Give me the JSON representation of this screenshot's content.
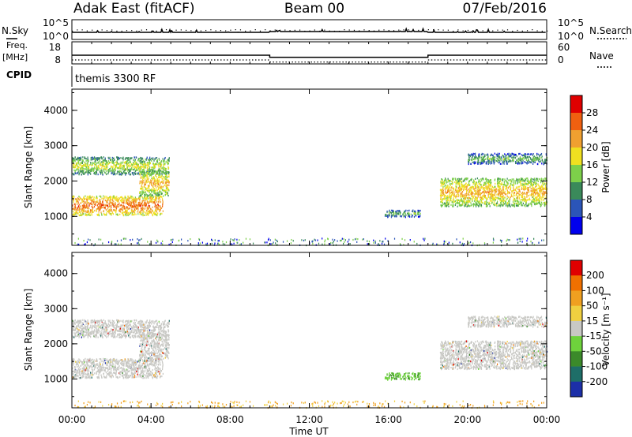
{
  "header": {
    "station": "Adak East (fitACF)",
    "beam": "Beam 00",
    "date": "07/Feb/2016"
  },
  "top_panel": {
    "left_label": "N.Sky",
    "right_label": "N.Search",
    "left_ticks": [
      "10^5",
      "10^0"
    ],
    "right_ticks": [
      "10^5",
      "10^0"
    ]
  },
  "freq_panel": {
    "left_label_1": "Freq.",
    "left_label_2": "[MHz]",
    "right_label": "Nave",
    "left_ticks": [
      "18",
      "8"
    ],
    "right_ticks": [
      "60",
      "0"
    ]
  },
  "cpid_panel": {
    "label": "CPID",
    "text": "themis 3300 RF"
  },
  "x_axis": {
    "label": "Time UT",
    "ticks": [
      "00:00",
      "04:00",
      "08:00",
      "12:00",
      "16:00",
      "20:00",
      "00:00"
    ]
  },
  "power_panel": {
    "ylabel": "Slant Range [km]",
    "yticks": [
      "4000",
      "3000",
      "2000",
      "1000"
    ],
    "colorbar_label": "Power [dB]",
    "colorbar_ticks": [
      "28",
      "24",
      "20",
      "16",
      "12",
      "8",
      "4"
    ],
    "colors": [
      "#0000ee",
      "#2b55b8",
      "#3a8a5a",
      "#7dd04a",
      "#f0e020",
      "#f0a030",
      "#f06010",
      "#e00000"
    ]
  },
  "velocity_panel": {
    "ylabel": "Slant Range [km]",
    "yticks": [
      "4000",
      "3000",
      "2000",
      "1000"
    ],
    "colorbar_label": "Velocity [m s⁻¹]",
    "colorbar_ticks": [
      "200",
      "100",
      "50",
      "15",
      "-15",
      "-50",
      "-100",
      "-200"
    ],
    "colors": [
      "#1c2fa8",
      "#1e6e68",
      "#3b8a2a",
      "#6ed23c",
      "#c8c8c4",
      "#f0d040",
      "#f0a020",
      "#f07000",
      "#e00000"
    ]
  },
  "chart_data": {
    "type": "heatmap",
    "title": "Adak East (fitACF)  Beam 00  07/Feb/2016",
    "xlabel": "Time UT",
    "ylabel": "Slant Range [km]",
    "xlim": [
      0,
      24
    ],
    "ylim": [
      180,
      4600
    ],
    "frequency_mhz": [
      {
        "start": 0,
        "end": 10,
        "value": 11.5
      },
      {
        "start": 10,
        "end": 18,
        "value": 10.2
      },
      {
        "start": 18,
        "end": 24,
        "value": 11.5
      }
    ],
    "echo_regions": [
      {
        "t0": 0.0,
        "t1": 4.6,
        "r0": 1050,
        "r1": 1600,
        "power_db": 20,
        "velocity": "gray"
      },
      {
        "t0": 0.0,
        "t1": 4.9,
        "r0": 2200,
        "r1": 2700,
        "power_db": 12,
        "velocity": "gray"
      },
      {
        "t0": 3.4,
        "t1": 4.9,
        "r0": 1600,
        "r1": 2300,
        "power_db": 16,
        "velocity": "gray"
      },
      {
        "t0": 15.8,
        "t1": 17.6,
        "r0": 1000,
        "r1": 1200,
        "power_db": 8,
        "velocity": "green"
      },
      {
        "t0": 18.6,
        "t1": 24.0,
        "r0": 1300,
        "r1": 2100,
        "power_db": 16,
        "velocity": "gray"
      },
      {
        "t0": 20.0,
        "t1": 24.0,
        "r0": 2500,
        "r1": 2800,
        "power_db": 8,
        "velocity": "gray"
      }
    ]
  }
}
